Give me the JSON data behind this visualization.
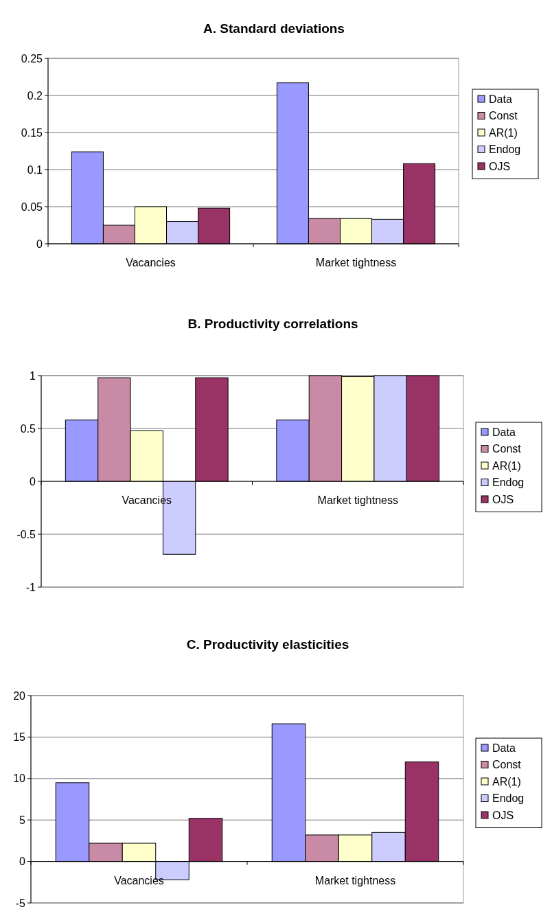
{
  "chart_data": [
    {
      "type": "bar",
      "title": "A. Standard deviations",
      "categories": [
        "Vacancies",
        "Market tightness"
      ],
      "series": [
        {
          "name": "Data",
          "color": "#9999ff",
          "values": [
            0.124,
            0.217
          ]
        },
        {
          "name": "Const",
          "color": "#c98aa6",
          "values": [
            0.025,
            0.034
          ]
        },
        {
          "name": "AR(1)",
          "color": "#ffffcc",
          "values": [
            0.05,
            0.034
          ]
        },
        {
          "name": "Endog",
          "color": "#ccccff",
          "values": [
            0.03,
            0.033
          ]
        },
        {
          "name": "OJS",
          "color": "#993366",
          "values": [
            0.048,
            0.108
          ]
        }
      ],
      "ylim": [
        0,
        0.25
      ],
      "yticks": [
        0,
        0.05,
        0.1,
        0.15,
        0.2,
        0.25
      ],
      "grid": "y",
      "legend": "right"
    },
    {
      "type": "bar",
      "title": "B. Productivity correlations",
      "categories": [
        "Vacancies",
        "Market tightness"
      ],
      "series": [
        {
          "name": "Data",
          "color": "#9999ff",
          "values": [
            0.58,
            0.58
          ]
        },
        {
          "name": "Const",
          "color": "#c98aa6",
          "values": [
            0.98,
            1.0
          ]
        },
        {
          "name": "AR(1)",
          "color": "#ffffcc",
          "values": [
            0.48,
            0.99
          ]
        },
        {
          "name": "Endog",
          "color": "#ccccff",
          "values": [
            -0.69,
            1.0
          ]
        },
        {
          "name": "OJS",
          "color": "#993366",
          "values": [
            0.98,
            1.0
          ]
        }
      ],
      "ylim": [
        -1,
        1
      ],
      "yticks": [
        -1,
        -0.5,
        0,
        0.5,
        1
      ],
      "grid": "y",
      "legend": "right"
    },
    {
      "type": "bar",
      "title": "C. Productivity elasticities",
      "categories": [
        "Vacancies",
        "Market tightness"
      ],
      "series": [
        {
          "name": "Data",
          "color": "#9999ff",
          "values": [
            9.5,
            16.6
          ]
        },
        {
          "name": "Const",
          "color": "#c98aa6",
          "values": [
            2.2,
            3.2
          ]
        },
        {
          "name": "AR(1)",
          "color": "#ffffcc",
          "values": [
            2.2,
            3.2
          ]
        },
        {
          "name": "Endog",
          "color": "#ccccff",
          "values": [
            -2.2,
            3.5
          ]
        },
        {
          "name": "OJS",
          "color": "#993366",
          "values": [
            5.2,
            12.0
          ]
        }
      ],
      "ylim": [
        -5,
        20
      ],
      "yticks": [
        -5,
        0,
        5,
        10,
        15,
        20
      ],
      "grid": "y",
      "legend": "right"
    }
  ]
}
